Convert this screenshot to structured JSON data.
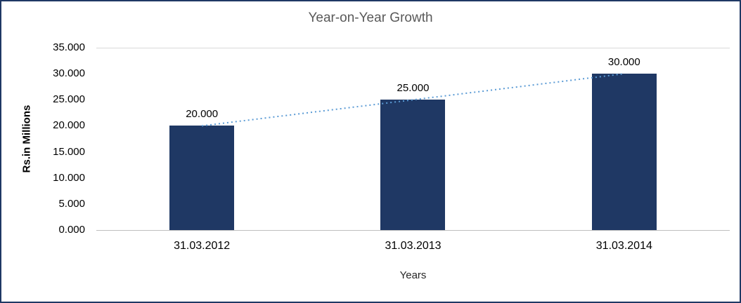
{
  "chart_data": {
    "type": "bar",
    "title": "Year-on-Year Growth",
    "xlabel": "Years",
    "ylabel": "Rs.in Millions",
    "categories": [
      "31.03.2012",
      "31.03.2013",
      "31.03.2014"
    ],
    "values": [
      20,
      25,
      30
    ],
    "value_labels": [
      "20.000",
      "25.000",
      "30.000"
    ],
    "ylim": [
      0,
      35
    ],
    "ytick_step": 5,
    "ytick_labels_desc": [
      "35.000",
      "30.000",
      "25.000",
      "20.000",
      "15.000",
      "10.000",
      "5.000",
      "0.000"
    ],
    "legend": "none",
    "grid": "top-boundary-line-only",
    "bar_color": "#1F3864",
    "frame_border_color": "#1F3864",
    "title_color": "#595959",
    "trendline": {
      "type": "linear",
      "style": "dotted",
      "color": "#5B9BD5"
    }
  }
}
